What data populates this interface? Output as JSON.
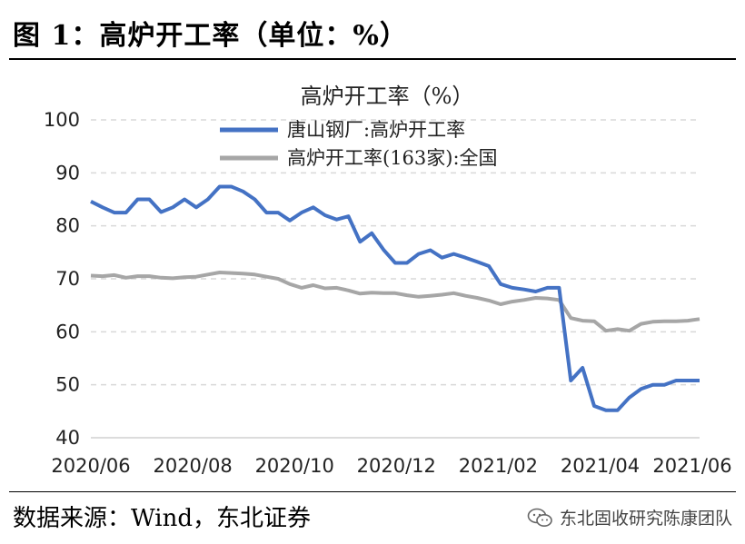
{
  "figure": {
    "title": "图 1：高炉开工率（单位：%）",
    "source": "数据来源：Wind，东北证券",
    "watermark": "东北固收研究陈康团队",
    "watermark_icon": "wechat-icon"
  },
  "chart_data": {
    "type": "line",
    "title": "高炉开工率（%）",
    "xlabel": "",
    "ylabel": "",
    "ylim": [
      40,
      100
    ],
    "yticks": [
      40,
      50,
      60,
      70,
      80,
      90,
      100
    ],
    "xlim": [
      0,
      52
    ],
    "xticks": [
      {
        "label": "2020/06",
        "at": 0
      },
      {
        "label": "2020/08",
        "at": 8.7
      },
      {
        "label": "2020/10",
        "at": 17.4
      },
      {
        "label": "2020/12",
        "at": 26.1
      },
      {
        "label": "2021/02",
        "at": 34.8
      },
      {
        "label": "2021/04",
        "at": 43.5
      },
      {
        "label": "2021/06",
        "at": 52.2
      }
    ],
    "grid": true,
    "legend_position": "top-center",
    "series": [
      {
        "name": "唐山钢厂:高炉开工率",
        "color": "#4472C4",
        "values": [
          84.6,
          83.5,
          82.5,
          82.5,
          85.0,
          85.0,
          82.6,
          83.5,
          85.0,
          83.5,
          85.0,
          87.4,
          87.4,
          86.5,
          85.0,
          82.5,
          82.5,
          81.0,
          82.5,
          83.5,
          82.0,
          81.2,
          81.8,
          77.0,
          78.6,
          75.5,
          73.0,
          73.0,
          74.7,
          75.4,
          74.0,
          74.7,
          74.0,
          73.2,
          72.4,
          69.0,
          68.3,
          68.0,
          67.6,
          68.3,
          68.3,
          50.8,
          53.2,
          46.0,
          45.2,
          45.2,
          47.6,
          49.2,
          50.0,
          50.0,
          50.8,
          50.8,
          50.8
        ]
      },
      {
        "name": "高炉开工率(163家):全国",
        "color": "#A6A6A6",
        "values": [
          70.6,
          70.5,
          70.7,
          70.2,
          70.5,
          70.5,
          70.2,
          70.1,
          70.3,
          70.4,
          70.8,
          71.2,
          71.1,
          71.0,
          70.8,
          70.4,
          70.0,
          69.0,
          68.3,
          68.8,
          68.2,
          68.3,
          67.8,
          67.2,
          67.4,
          67.3,
          67.3,
          66.9,
          66.6,
          66.8,
          67.0,
          67.3,
          66.8,
          66.4,
          65.9,
          65.2,
          65.7,
          66.0,
          66.4,
          66.3,
          66.0,
          62.6,
          62.1,
          62.0,
          60.2,
          60.5,
          60.2,
          61.5,
          61.9,
          62.0,
          62.0,
          62.1,
          62.4
        ]
      }
    ]
  }
}
